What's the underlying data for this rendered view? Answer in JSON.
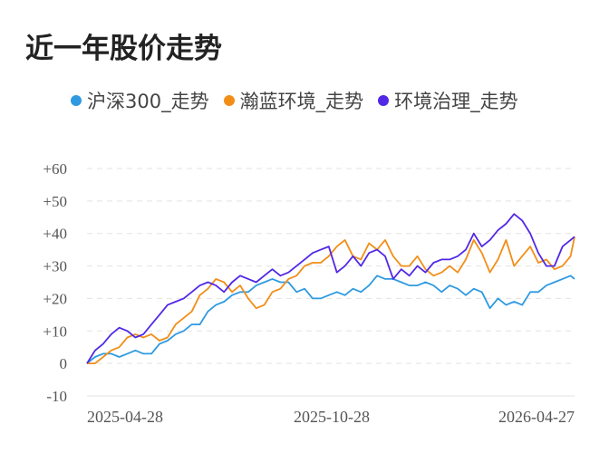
{
  "title": "近一年股价走势",
  "chart_data": {
    "type": "line",
    "title": "近一年股价走势",
    "xlabel": "",
    "ylabel": "",
    "x_labels": [
      "2025-04-28",
      "2025-10-28",
      "2026-04-27"
    ],
    "x_range": [
      "2025-04-28",
      "2026-04-27"
    ],
    "y_ticks": [
      "+60",
      "+50",
      "+40",
      "+30",
      "+20",
      "+10",
      "0",
      "-10"
    ],
    "ylim": [
      -10,
      60
    ],
    "grid": "horizontal dashed",
    "legend_position": "top",
    "series": [
      {
        "name": "沪深300_走势",
        "color": "#2f9ae0",
        "x": [
          0,
          4,
          8,
          12,
          16,
          20,
          24,
          28,
          32,
          36,
          40,
          44,
          48,
          52,
          56,
          60,
          64,
          68,
          72,
          76,
          80,
          84,
          88,
          92,
          96,
          100,
          104,
          108,
          112,
          116,
          120,
          124,
          128,
          132,
          136,
          140,
          144,
          148,
          152,
          156,
          160,
          164,
          168,
          172,
          176,
          180,
          184,
          188,
          192,
          196,
          200,
          204,
          208,
          212,
          216,
          220,
          224,
          228,
          232,
          236,
          240,
          242
        ],
        "values": [
          0,
          2,
          3,
          3,
          2,
          3,
          4,
          3,
          3,
          6,
          7,
          9,
          10,
          12,
          12,
          16,
          18,
          19,
          21,
          22,
          22,
          24,
          25,
          26,
          25,
          25,
          22,
          23,
          20,
          20,
          21,
          22,
          21,
          23,
          22,
          24,
          27,
          26,
          26,
          25,
          24,
          24,
          25,
          24,
          22,
          24,
          23,
          21,
          23,
          22,
          17,
          20,
          18,
          19,
          18,
          22,
          22,
          24,
          25,
          26,
          27,
          26
        ]
      },
      {
        "name": "瀚蓝环境_走势",
        "color": "#f28e18",
        "x": [
          0,
          4,
          8,
          12,
          16,
          20,
          24,
          28,
          32,
          36,
          40,
          44,
          48,
          52,
          56,
          60,
          64,
          68,
          72,
          76,
          80,
          84,
          88,
          92,
          96,
          100,
          104,
          108,
          112,
          116,
          120,
          124,
          128,
          132,
          136,
          140,
          144,
          148,
          152,
          156,
          160,
          164,
          168,
          172,
          176,
          180,
          184,
          188,
          192,
          196,
          200,
          204,
          208,
          212,
          216,
          220,
          224,
          228,
          232,
          236,
          240,
          242
        ],
        "values": [
          0,
          0,
          2,
          4,
          5,
          8,
          9,
          8,
          9,
          7,
          8,
          12,
          14,
          16,
          21,
          23,
          26,
          25,
          22,
          24,
          20,
          17,
          18,
          22,
          23,
          26,
          27,
          30,
          31,
          31,
          33,
          36,
          38,
          33,
          32,
          37,
          35,
          38,
          33,
          30,
          30,
          33,
          29,
          27,
          28,
          30,
          28,
          32,
          38,
          34,
          28,
          32,
          38,
          30,
          33,
          36,
          31,
          32,
          29,
          30,
          33,
          39
        ]
      },
      {
        "name": "环境治理_走势",
        "color": "#5128e6",
        "x": [
          0,
          4,
          8,
          12,
          16,
          20,
          24,
          28,
          32,
          36,
          40,
          44,
          48,
          52,
          56,
          60,
          64,
          68,
          72,
          76,
          80,
          84,
          88,
          92,
          96,
          100,
          104,
          108,
          112,
          116,
          120,
          124,
          128,
          132,
          136,
          140,
          144,
          148,
          152,
          156,
          160,
          164,
          168,
          172,
          176,
          180,
          184,
          188,
          192,
          196,
          200,
          204,
          208,
          212,
          216,
          220,
          224,
          228,
          232,
          236,
          240,
          242
        ],
        "values": [
          0,
          4,
          6,
          9,
          11,
          10,
          8,
          9,
          12,
          15,
          18,
          19,
          20,
          22,
          24,
          25,
          24,
          22,
          25,
          27,
          26,
          25,
          27,
          29,
          27,
          28,
          30,
          32,
          34,
          35,
          36,
          28,
          30,
          33,
          30,
          34,
          35,
          33,
          26,
          29,
          27,
          30,
          28,
          31,
          32,
          32,
          33,
          35,
          40,
          36,
          38,
          41,
          43,
          46,
          44,
          40,
          34,
          30,
          30,
          36,
          38,
          39
        ]
      }
    ]
  }
}
